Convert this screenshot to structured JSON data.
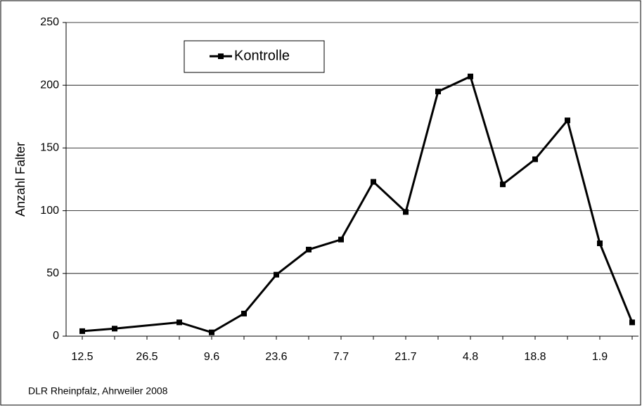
{
  "chart_data": {
    "type": "line",
    "y_label": "Anzahl Falter",
    "footer": "DLR Rheinpfalz, Ahrweiler 2008",
    "categories": [
      "12.5",
      null,
      "26.5",
      null,
      "9.6",
      null,
      "23.6",
      null,
      "7.7",
      null,
      "21.7",
      null,
      "4.8",
      null,
      "18.8",
      null,
      "1.9",
      null
    ],
    "series": [
      {
        "name": "Kontrolle",
        "color": "#000000",
        "values": [
          4,
          6,
          null,
          11,
          3,
          18,
          49,
          69,
          77,
          123,
          99,
          195,
          207,
          121,
          141,
          172,
          74,
          11
        ]
      }
    ],
    "span_gaps": true,
    "ylim": [
      0,
      250
    ],
    "yticks": [
      0,
      50,
      100,
      150,
      200,
      250
    ],
    "grid": true
  }
}
